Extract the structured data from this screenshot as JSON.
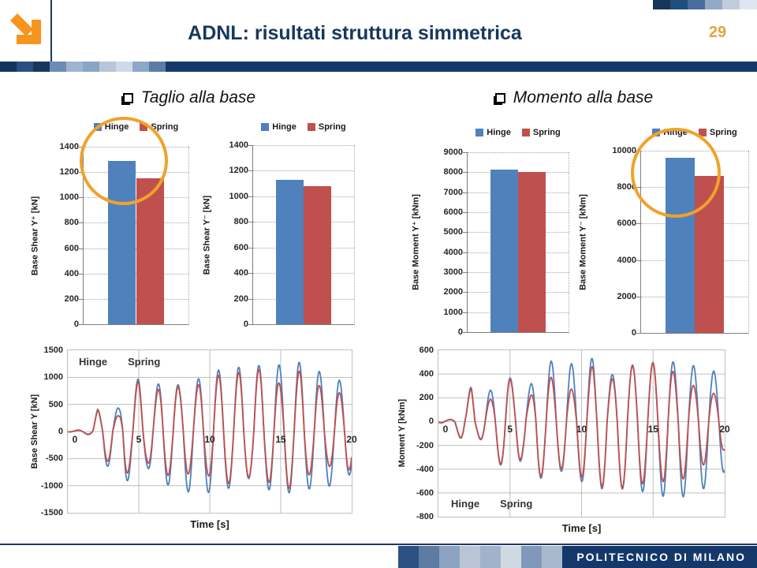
{
  "header": {
    "title": "ADNL: risultati struttura simmetrica",
    "page_number": "29"
  },
  "sections": [
    {
      "label": "Taglio alla base"
    },
    {
      "label": "Momento alla base"
    }
  ],
  "footer": {
    "brand": "POLITECNICO DI MILANO"
  },
  "colors": {
    "hinge_blue": "#4f81bd",
    "spring_red": "#c0504d",
    "navy": "#14386a",
    "title_navy": "#17375d",
    "orange_accent": "#e8a33d",
    "highlight_circle": "#efa32a",
    "arrow_orange": "#f7941e"
  },
  "decor": {
    "top_right_squares": [
      "#16365c",
      "#1f4e79",
      "#4a6e9b",
      "#93a9c5",
      "#c0cddd",
      "#dfe6ef"
    ],
    "band_squares": [
      "#12355e",
      "#2a4f82",
      "#17375d",
      "#6c8cb5",
      "#9fb4cf",
      "#89a5c6",
      "#b7c6da",
      "#cfdae6",
      "#8da8c8",
      "#5c7ca6"
    ],
    "footer_squares": [
      "#2c5183",
      "#5d7ba3",
      "#8ba3c0",
      "#b9c5d4",
      "#a1b3c8",
      "#d0d8e2",
      "#8099ba",
      "#a9b9cd"
    ]
  },
  "chart_data": [
    {
      "type": "bar",
      "ylabel": "Base Shear Y⁺ [kN]",
      "categories": [
        "Hinge",
        "Spring"
      ],
      "values": [
        1290,
        1150
      ],
      "colors": [
        "#4f81bd",
        "#c0504d"
      ],
      "ylim": [
        0,
        1400
      ],
      "ytick_step": 200,
      "legend_position": "top"
    },
    {
      "type": "bar",
      "ylabel": "Base Shear Y⁻ [kN]",
      "categories": [
        "Hinge",
        "Spring"
      ],
      "values": [
        1130,
        1080
      ],
      "colors": [
        "#4f81bd",
        "#c0504d"
      ],
      "ylim": [
        0,
        1400
      ],
      "ytick_step": 200,
      "legend_position": "top"
    },
    {
      "type": "bar",
      "ylabel": "Base Moment Y⁺ [kNm]",
      "categories": [
        "Hinge",
        "Spring"
      ],
      "values": [
        8150,
        8000
      ],
      "colors": [
        "#4f81bd",
        "#c0504d"
      ],
      "ylim": [
        0,
        9000
      ],
      "ytick_step": 1000,
      "legend_position": "top"
    },
    {
      "type": "bar",
      "ylabel": "Base Moment Y⁻ [kNm]",
      "categories": [
        "Hinge",
        "Spring"
      ],
      "values": [
        9600,
        8600
      ],
      "colors": [
        "#4f81bd",
        "#c0504d"
      ],
      "ylim": [
        0,
        10000
      ],
      "ytick_step": 2000,
      "legend_position": "top"
    },
    {
      "type": "line",
      "ylabel": "Base Shear Y [kN]",
      "xlabel": "Time [s]",
      "xlim": [
        0,
        20
      ],
      "xtick_step": 5,
      "ylim": [
        -1500,
        1500
      ],
      "ytick_step": 500,
      "period_s": 1.42,
      "phase_start_s": 1.745,
      "legend_position": "top-left",
      "series": [
        {
          "name": "Hinge",
          "color": "#4f81bd",
          "peaks_pos": [
            [
              0.0,
              5
            ],
            [
              0.8,
              30
            ],
            [
              1.6,
              60
            ],
            [
              2.1,
              410
            ],
            [
              2.9,
              300
            ],
            [
              3.6,
              450
            ],
            [
              4.2,
              810
            ],
            [
              5.0,
              980
            ],
            [
              5.9,
              690
            ],
            [
              6.9,
              1090
            ],
            [
              7.9,
              830
            ],
            [
              8.7,
              850
            ],
            [
              9.9,
              1140
            ],
            [
              11.1,
              1130
            ],
            [
              12.3,
              1200
            ],
            [
              13.7,
              1220
            ],
            [
              15.0,
              1230
            ],
            [
              16.4,
              1280
            ],
            [
              17.7,
              1110
            ],
            [
              19.1,
              950
            ],
            [
              20.0,
              800
            ]
          ],
          "peaks_neg": [
            [
              0.0,
              -5
            ],
            [
              0.9,
              -30
            ],
            [
              1.7,
              -70
            ],
            [
              2.6,
              -660
            ],
            [
              3.3,
              -600
            ],
            [
              4.0,
              -1030
            ],
            [
              4.7,
              -630
            ],
            [
              5.6,
              -650
            ],
            [
              6.5,
              -1100
            ],
            [
              7.5,
              -900
            ],
            [
              8.2,
              -1120
            ],
            [
              9.3,
              -1100
            ],
            [
              10.5,
              -1150
            ],
            [
              11.7,
              -1000
            ],
            [
              12.9,
              -850
            ],
            [
              14.2,
              -1080
            ],
            [
              15.6,
              -1130
            ],
            [
              17.0,
              -1060
            ],
            [
              18.3,
              -1020
            ],
            [
              19.6,
              -880
            ],
            [
              20.0,
              -750
            ]
          ]
        },
        {
          "name": "Spring",
          "color": "#c0504d",
          "peaks_pos": [
            [
              0.0,
              5
            ],
            [
              0.8,
              25
            ],
            [
              1.6,
              50
            ],
            [
              2.1,
              400
            ],
            [
              2.9,
              220
            ],
            [
              3.6,
              300
            ],
            [
              4.2,
              660
            ],
            [
              5.0,
              930
            ],
            [
              5.9,
              590
            ],
            [
              6.9,
              980
            ],
            [
              7.9,
              800
            ],
            [
              8.7,
              740
            ],
            [
              9.9,
              1030
            ],
            [
              11.1,
              1040
            ],
            [
              12.3,
              1100
            ],
            [
              13.7,
              1150
            ],
            [
              15.0,
              870
            ],
            [
              16.4,
              1130
            ],
            [
              17.7,
              850
            ],
            [
              19.1,
              720
            ],
            [
              20.0,
              600
            ]
          ],
          "peaks_neg": [
            [
              0.0,
              -5
            ],
            [
              0.9,
              -25
            ],
            [
              1.7,
              -60
            ],
            [
              2.6,
              -560
            ],
            [
              3.3,
              -520
            ],
            [
              4.0,
              -880
            ],
            [
              4.7,
              -500
            ],
            [
              5.6,
              -560
            ],
            [
              6.5,
              -890
            ],
            [
              7.5,
              -750
            ],
            [
              8.2,
              -830
            ],
            [
              9.3,
              -650
            ],
            [
              10.5,
              -980
            ],
            [
              11.7,
              -950
            ],
            [
              12.9,
              -830
            ],
            [
              14.2,
              -940
            ],
            [
              15.6,
              -1050
            ],
            [
              17.0,
              -800
            ],
            [
              18.3,
              -620
            ],
            [
              19.6,
              -850
            ],
            [
              20.0,
              -600
            ]
          ]
        }
      ]
    },
    {
      "type": "line",
      "ylabel": "Moment Y [kNm]",
      "xlabel": "Time [s]",
      "xlim": [
        0,
        20
      ],
      "xtick_step": 5,
      "ylim": [
        -800,
        600
      ],
      "ytick_step": 200,
      "period_s": 1.42,
      "phase_start_s": 1.845,
      "legend_position": "bottom-left",
      "series": [
        {
          "name": "Hinge",
          "color": "#4f81bd",
          "peaks_pos": [
            [
              0.0,
              5
            ],
            [
              0.9,
              20
            ],
            [
              1.7,
              35
            ],
            [
              2.3,
              315
            ],
            [
              3.1,
              200
            ],
            [
              3.8,
              285
            ],
            [
              4.6,
              465
            ],
            [
              5.4,
              280
            ],
            [
              6.3,
              285
            ],
            [
              7.4,
              500
            ],
            [
              8.5,
              520
            ],
            [
              9.7,
              470
            ],
            [
              10.8,
              535
            ],
            [
              11.9,
              375
            ],
            [
              13.1,
              475
            ],
            [
              14.4,
              475
            ],
            [
              15.7,
              525
            ],
            [
              16.9,
              485
            ],
            [
              18.2,
              465
            ],
            [
              19.5,
              415
            ],
            [
              20.0,
              380
            ]
          ],
          "peaks_neg": [
            [
              0.0,
              -5
            ],
            [
              1.0,
              -40
            ],
            [
              1.9,
              -210
            ],
            [
              2.7,
              -120
            ],
            [
              3.5,
              -230
            ],
            [
              4.2,
              -345
            ],
            [
              5.0,
              -460
            ],
            [
              5.9,
              -305
            ],
            [
              6.9,
              -495
            ],
            [
              8.0,
              -415
            ],
            [
              9.1,
              -420
            ],
            [
              10.3,
              -530
            ],
            [
              11.4,
              -565
            ],
            [
              12.6,
              -560
            ],
            [
              13.8,
              -590
            ],
            [
              15.1,
              -585
            ],
            [
              16.3,
              -670
            ],
            [
              17.6,
              -610
            ],
            [
              18.9,
              -545
            ],
            [
              20.0,
              -420
            ]
          ]
        },
        {
          "name": "Spring",
          "color": "#c0504d",
          "peaks_pos": [
            [
              0.0,
              5
            ],
            [
              0.9,
              18
            ],
            [
              1.7,
              30
            ],
            [
              2.3,
              300
            ],
            [
              3.1,
              150
            ],
            [
              3.8,
              200
            ],
            [
              4.6,
              450
            ],
            [
              5.4,
              270
            ],
            [
              6.3,
              185
            ],
            [
              7.4,
              420
            ],
            [
              8.5,
              310
            ],
            [
              9.7,
              255
            ],
            [
              10.8,
              475
            ],
            [
              11.9,
              330
            ],
            [
              13.1,
              470
            ],
            [
              14.4,
              470
            ],
            [
              15.7,
              520
            ],
            [
              16.9,
              350
            ],
            [
              18.2,
              285
            ],
            [
              19.4,
              230
            ],
            [
              20.0,
              230
            ]
          ],
          "peaks_neg": [
            [
              0.0,
              -5
            ],
            [
              1.0,
              -35
            ],
            [
              1.9,
              -205
            ],
            [
              2.7,
              -115
            ],
            [
              3.5,
              -220
            ],
            [
              4.2,
              -335
            ],
            [
              5.0,
              -450
            ],
            [
              5.9,
              -290
            ],
            [
              6.9,
              -480
            ],
            [
              8.0,
              -400
            ],
            [
              9.1,
              -390
            ],
            [
              10.3,
              -490
            ],
            [
              11.4,
              -545
            ],
            [
              12.6,
              -555
            ],
            [
              13.8,
              -565
            ],
            [
              15.1,
              -445
            ],
            [
              16.3,
              -565
            ],
            [
              17.6,
              -430
            ],
            [
              18.8,
              -345
            ],
            [
              20.0,
              -235
            ]
          ]
        }
      ]
    }
  ]
}
